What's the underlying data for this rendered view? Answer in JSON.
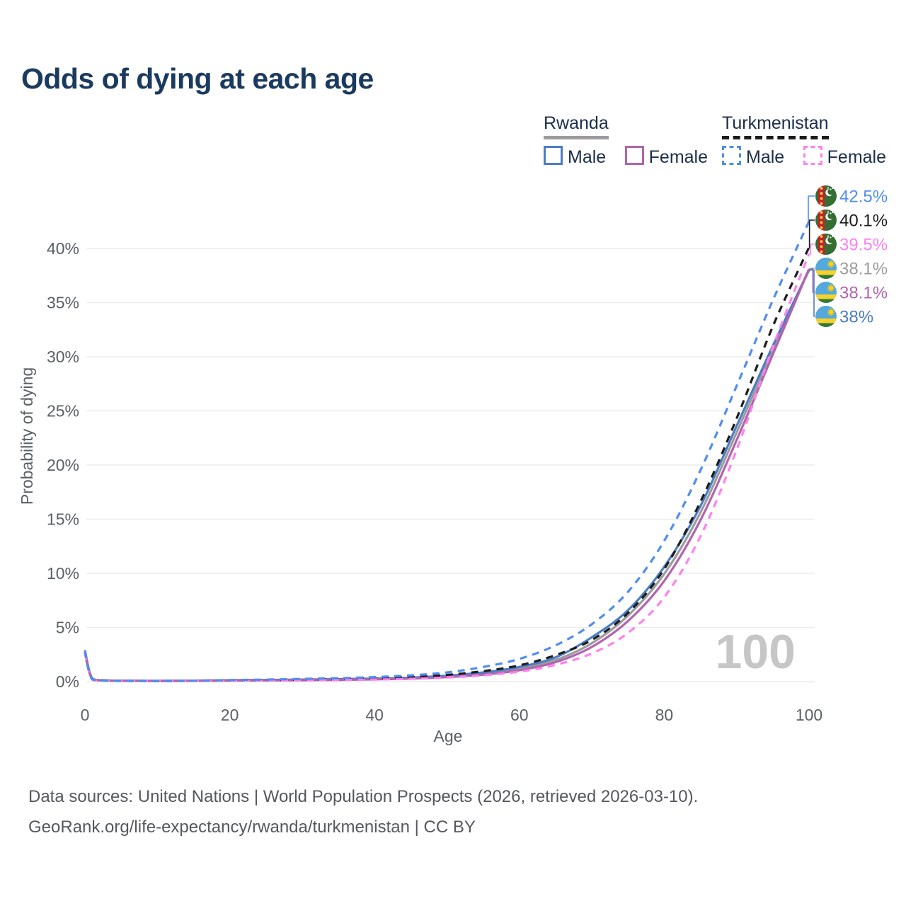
{
  "title": "Odds of dying at each age",
  "legend": {
    "groups": [
      {
        "name": "Rwanda",
        "line_style": "solid",
        "line_color": "#9c9c9c",
        "items": [
          {
            "label": "Male",
            "color": "#4a7dc4",
            "dashed": false
          },
          {
            "label": "Female",
            "color": "#b263ae",
            "dashed": false
          }
        ]
      },
      {
        "name": "Turkmenistan",
        "line_style": "dashed",
        "line_color": "#1c1c1c",
        "items": [
          {
            "label": "Male",
            "color": "#4f8df2",
            "dashed": true
          },
          {
            "label": "Female",
            "color": "#ff80ef",
            "dashed": true
          }
        ]
      }
    ]
  },
  "chart_data": {
    "type": "line",
    "title": "Odds of dying at each age",
    "xlabel": "Age",
    "ylabel": "Probability of dying",
    "xlim": [
      0,
      100
    ],
    "ylim": [
      0,
      44
    ],
    "x_ticks": [
      0,
      20,
      40,
      60,
      80,
      100
    ],
    "y_tick_step": 5,
    "y_tick_max": 40,
    "y_tick_suffix": "%",
    "grid": true,
    "legend_position": "top-right",
    "watermark": "100",
    "x": [
      0,
      1,
      3,
      5,
      10,
      15,
      20,
      25,
      30,
      35,
      40,
      45,
      50,
      55,
      60,
      65,
      70,
      75,
      80,
      85,
      90,
      95,
      100
    ],
    "series": [
      {
        "name": "Turkmenistan Male",
        "country": "turkmenistan",
        "sex": "male",
        "color": "#4f8df2",
        "dashed": true,
        "end_label": "42.5%",
        "values": [
          2.8,
          0.22,
          0.09,
          0.07,
          0.06,
          0.09,
          0.14,
          0.19,
          0.25,
          0.32,
          0.42,
          0.58,
          0.85,
          1.35,
          2.1,
          3.35,
          5.3,
          8.3,
          13.0,
          19.5,
          27.3,
          35.2,
          42.5
        ]
      },
      {
        "name": "Turkmenistan (all)",
        "country": "turkmenistan",
        "sex": "all",
        "color": "#1c1c1c",
        "dashed": true,
        "end_label": "40.1%",
        "values": [
          2.72,
          0.21,
          0.085,
          0.065,
          0.055,
          0.075,
          0.11,
          0.145,
          0.185,
          0.24,
          0.31,
          0.42,
          0.62,
          0.97,
          1.5,
          2.45,
          3.85,
          6.35,
          10.4,
          16.6,
          24.3,
          32.8,
          40.1
        ]
      },
      {
        "name": "Turkmenistan Female",
        "country": "turkmenistan",
        "sex": "female",
        "color": "#ff80ef",
        "dashed": true,
        "end_label": "39.5%",
        "values": [
          2.65,
          0.2,
          0.08,
          0.06,
          0.05,
          0.06,
          0.08,
          0.1,
          0.12,
          0.15,
          0.19,
          0.26,
          0.38,
          0.58,
          0.92,
          1.55,
          2.6,
          4.5,
          7.8,
          13.4,
          21.4,
          30.9,
          39.5
        ]
      },
      {
        "name": "Rwanda (all)",
        "country": "rwanda",
        "sex": "all",
        "color": "#9c9c9c",
        "dashed": false,
        "end_label": "38.1%",
        "values": [
          2.75,
          0.28,
          0.11,
          0.085,
          0.065,
          0.08,
          0.11,
          0.135,
          0.16,
          0.2,
          0.24,
          0.33,
          0.49,
          0.75,
          1.2,
          2.0,
          3.55,
          6.1,
          9.95,
          15.6,
          23.0,
          30.6,
          38.1
        ]
      },
      {
        "name": "Rwanda Female",
        "country": "rwanda",
        "sex": "female",
        "color": "#b263ae",
        "dashed": false,
        "end_label": "38.1%",
        "values": [
          2.6,
          0.26,
          0.1,
          0.08,
          0.06,
          0.07,
          0.09,
          0.11,
          0.13,
          0.16,
          0.2,
          0.28,
          0.42,
          0.65,
          1.05,
          1.8,
          3.2,
          5.6,
          9.3,
          14.9,
          22.3,
          30.2,
          38.1
        ]
      },
      {
        "name": "Rwanda Male",
        "country": "rwanda",
        "sex": "male",
        "color": "#4a7dc4",
        "dashed": false,
        "end_label": "38%",
        "values": [
          2.9,
          0.3,
          0.12,
          0.09,
          0.07,
          0.09,
          0.13,
          0.16,
          0.19,
          0.23,
          0.28,
          0.37,
          0.55,
          0.85,
          1.35,
          2.25,
          4.1,
          6.6,
          10.6,
          16.2,
          23.6,
          31.0,
          38.0
        ]
      }
    ]
  },
  "footer": {
    "line1": "Data sources: United Nations | World Population Prospects (2026, retrieved 2026-03-10).",
    "line2": "GeoRank.org/life-expectancy/rwanda/turkmenistan | CC BY"
  }
}
